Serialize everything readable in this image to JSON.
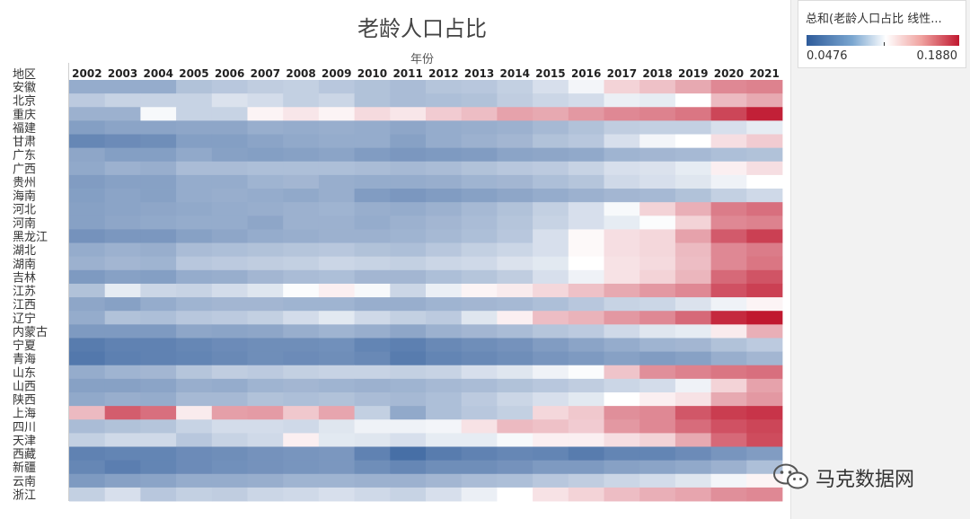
{
  "chart_data": {
    "type": "heatmap",
    "title": "老龄人口占比",
    "xlabel": "年份",
    "ylabel": "地区",
    "years": [
      "2002",
      "2003",
      "2004",
      "2005",
      "2006",
      "2007",
      "2008",
      "2009",
      "2010",
      "2011",
      "2012",
      "2013",
      "2014",
      "2015",
      "2016",
      "2017",
      "2018",
      "2019",
      "2020",
      "2021"
    ],
    "regions": [
      "安徽",
      "北京",
      "重庆",
      "福建",
      "甘肃",
      "广东",
      "广西",
      "贵州",
      "海南",
      "河北",
      "河南",
      "黑龙江",
      "湖北",
      "湖南",
      "吉林",
      "江苏",
      "江西",
      "辽宁",
      "内蒙古",
      "宁夏",
      "青海",
      "山东",
      "山西",
      "陕西",
      "上海",
      "四川",
      "天津",
      "西藏",
      "新疆",
      "云南",
      "浙江"
    ],
    "color_scale": {
      "min": 0.0476,
      "max": 0.188,
      "low_color": "#2e5b9a",
      "mid_color": "#ffffff",
      "high_color": "#c0182f",
      "mid_value": 0.118
    },
    "values": [
      [
        0.09,
        0.09,
        0.09,
        0.098,
        0.1,
        0.102,
        0.103,
        0.1,
        0.098,
        0.096,
        0.099,
        0.1,
        0.103,
        0.108,
        0.115,
        0.128,
        0.133,
        0.14,
        0.15,
        0.152
      ],
      [
        0.101,
        0.104,
        0.104,
        0.104,
        0.109,
        0.107,
        0.103,
        0.105,
        0.098,
        0.096,
        0.097,
        0.098,
        0.102,
        0.105,
        0.107,
        0.113,
        0.112,
        0.118,
        0.135,
        0.14
      ],
      [
        0.092,
        0.092,
        0.116,
        0.104,
        0.104,
        0.12,
        0.123,
        0.12,
        0.126,
        0.123,
        0.13,
        0.134,
        0.142,
        0.14,
        0.145,
        0.15,
        0.152,
        0.156,
        0.172,
        0.185
      ],
      [
        0.085,
        0.087,
        0.087,
        0.088,
        0.088,
        0.091,
        0.09,
        0.091,
        0.09,
        0.088,
        0.09,
        0.091,
        0.092,
        0.095,
        0.098,
        0.102,
        0.103,
        0.103,
        0.108,
        0.112
      ],
      [
        0.075,
        0.077,
        0.078,
        0.085,
        0.085,
        0.087,
        0.089,
        0.09,
        0.09,
        0.086,
        0.09,
        0.092,
        0.094,
        0.098,
        0.1,
        0.108,
        0.115,
        0.118,
        0.125,
        0.13
      ],
      [
        0.088,
        0.085,
        0.085,
        0.089,
        0.086,
        0.085,
        0.086,
        0.087,
        0.084,
        0.082,
        0.083,
        0.084,
        0.087,
        0.088,
        0.089,
        0.093,
        0.094,
        0.095,
        0.097,
        0.098
      ],
      [
        0.089,
        0.092,
        0.091,
        0.096,
        0.096,
        0.097,
        0.097,
        0.097,
        0.096,
        0.095,
        0.096,
        0.098,
        0.1,
        0.101,
        0.104,
        0.108,
        0.109,
        0.112,
        0.121,
        0.125
      ],
      [
        0.084,
        0.086,
        0.086,
        0.09,
        0.09,
        0.093,
        0.094,
        0.091,
        0.09,
        0.09,
        0.091,
        0.093,
        0.094,
        0.097,
        0.099,
        0.106,
        0.108,
        0.11,
        0.114,
        0.118
      ],
      [
        0.085,
        0.087,
        0.086,
        0.09,
        0.091,
        0.09,
        0.089,
        0.091,
        0.084,
        0.082,
        0.084,
        0.086,
        0.088,
        0.09,
        0.092,
        0.094,
        0.095,
        0.098,
        0.103,
        0.106
      ],
      [
        0.086,
        0.087,
        0.088,
        0.089,
        0.09,
        0.091,
        0.092,
        0.093,
        0.091,
        0.09,
        0.092,
        0.095,
        0.098,
        0.103,
        0.108,
        0.116,
        0.128,
        0.138,
        0.154,
        0.158
      ],
      [
        0.086,
        0.088,
        0.089,
        0.09,
        0.09,
        0.088,
        0.092,
        0.092,
        0.09,
        0.092,
        0.094,
        0.096,
        0.099,
        0.104,
        0.108,
        0.112,
        0.117,
        0.128,
        0.15,
        0.152
      ],
      [
        0.08,
        0.082,
        0.082,
        0.086,
        0.088,
        0.09,
        0.091,
        0.092,
        0.092,
        0.093,
        0.095,
        0.097,
        0.1,
        0.108,
        0.119,
        0.125,
        0.127,
        0.142,
        0.165,
        0.174
      ],
      [
        0.09,
        0.092,
        0.091,
        0.096,
        0.097,
        0.098,
        0.099,
        0.1,
        0.098,
        0.097,
        0.1,
        0.103,
        0.105,
        0.108,
        0.119,
        0.125,
        0.127,
        0.135,
        0.15,
        0.154
      ],
      [
        0.092,
        0.094,
        0.093,
        0.1,
        0.101,
        0.102,
        0.103,
        0.105,
        0.104,
        0.103,
        0.105,
        0.106,
        0.109,
        0.111,
        0.118,
        0.124,
        0.126,
        0.134,
        0.15,
        0.156
      ],
      [
        0.083,
        0.086,
        0.085,
        0.09,
        0.091,
        0.094,
        0.096,
        0.097,
        0.094,
        0.094,
        0.097,
        0.099,
        0.102,
        0.108,
        0.114,
        0.124,
        0.128,
        0.136,
        0.16,
        0.167
      ],
      [
        0.098,
        0.112,
        0.105,
        0.104,
        0.107,
        0.11,
        0.117,
        0.121,
        0.116,
        0.105,
        0.113,
        0.12,
        0.122,
        0.127,
        0.133,
        0.14,
        0.145,
        0.15,
        0.168,
        0.174
      ],
      [
        0.088,
        0.086,
        0.09,
        0.093,
        0.094,
        0.094,
        0.093,
        0.093,
        0.091,
        0.091,
        0.093,
        0.094,
        0.095,
        0.097,
        0.1,
        0.104,
        0.105,
        0.109,
        0.114,
        0.12
      ],
      [
        0.09,
        0.098,
        0.097,
        0.1,
        0.101,
        0.103,
        0.107,
        0.111,
        0.106,
        0.103,
        0.101,
        0.11,
        0.121,
        0.134,
        0.137,
        0.145,
        0.15,
        0.16,
        0.182,
        0.188
      ],
      [
        0.083,
        0.083,
        0.083,
        0.088,
        0.087,
        0.088,
        0.091,
        0.093,
        0.091,
        0.088,
        0.092,
        0.094,
        0.096,
        0.099,
        0.101,
        0.106,
        0.11,
        0.112,
        0.122,
        0.138
      ],
      [
        0.07,
        0.073,
        0.073,
        0.075,
        0.077,
        0.078,
        0.078,
        0.079,
        0.074,
        0.072,
        0.076,
        0.078,
        0.08,
        0.084,
        0.087,
        0.09,
        0.093,
        0.094,
        0.098,
        0.101
      ],
      [
        0.068,
        0.072,
        0.073,
        0.074,
        0.076,
        0.078,
        0.077,
        0.078,
        0.076,
        0.07,
        0.074,
        0.076,
        0.078,
        0.081,
        0.083,
        0.086,
        0.084,
        0.086,
        0.091,
        0.094
      ],
      [
        0.09,
        0.093,
        0.094,
        0.099,
        0.102,
        0.101,
        0.103,
        0.104,
        0.104,
        0.103,
        0.104,
        0.108,
        0.11,
        0.114,
        0.117,
        0.132,
        0.148,
        0.152,
        0.156,
        0.158
      ],
      [
        0.086,
        0.086,
        0.087,
        0.091,
        0.09,
        0.093,
        0.094,
        0.093,
        0.092,
        0.093,
        0.095,
        0.096,
        0.098,
        0.1,
        0.102,
        0.105,
        0.107,
        0.114,
        0.128,
        0.142
      ],
      [
        0.089,
        0.091,
        0.09,
        0.095,
        0.095,
        0.098,
        0.097,
        0.098,
        0.096,
        0.095,
        0.097,
        0.101,
        0.105,
        0.108,
        0.111,
        0.118,
        0.121,
        0.124,
        0.14,
        0.145
      ],
      [
        0.135,
        0.164,
        0.158,
        0.122,
        0.143,
        0.144,
        0.131,
        0.141,
        0.103,
        0.089,
        0.097,
        0.1,
        0.103,
        0.127,
        0.131,
        0.148,
        0.15,
        0.166,
        0.175,
        0.178
      ],
      [
        0.096,
        0.098,
        0.099,
        0.104,
        0.107,
        0.107,
        0.106,
        0.11,
        0.114,
        0.114,
        0.115,
        0.124,
        0.135,
        0.133,
        0.13,
        0.145,
        0.15,
        0.159,
        0.168,
        0.172
      ],
      [
        0.103,
        0.106,
        0.106,
        0.1,
        0.104,
        0.106,
        0.121,
        0.111,
        0.11,
        0.108,
        0.112,
        0.112,
        0.116,
        0.121,
        0.121,
        0.125,
        0.128,
        0.14,
        0.16,
        0.17
      ],
      [
        0.073,
        0.074,
        0.074,
        0.077,
        0.078,
        0.08,
        0.081,
        0.082,
        0.073,
        0.063,
        0.07,
        0.073,
        0.075,
        0.074,
        0.07,
        0.074,
        0.074,
        0.077,
        0.081,
        0.084
      ],
      [
        0.075,
        0.071,
        0.074,
        0.077,
        0.079,
        0.08,
        0.081,
        0.082,
        0.078,
        0.075,
        0.078,
        0.078,
        0.08,
        0.083,
        0.083,
        0.086,
        0.087,
        0.089,
        0.092,
        0.097
      ],
      [
        0.083,
        0.086,
        0.087,
        0.09,
        0.09,
        0.091,
        0.093,
        0.093,
        0.092,
        0.092,
        0.094,
        0.096,
        0.097,
        0.1,
        0.102,
        0.105,
        0.107,
        0.11,
        0.115,
        0.12
      ],
      [
        0.103,
        0.108,
        0.1,
        0.103,
        0.102,
        0.105,
        0.106,
        0.108,
        0.106,
        0.104,
        0.108,
        0.113,
        0.118,
        0.124,
        0.128,
        0.134,
        0.138,
        0.141,
        0.148,
        0.15
      ]
    ]
  },
  "legend": {
    "title": "总和(老龄人口占比 线性...",
    "min_label": "0.0476",
    "max_label": "0.1880"
  },
  "watermark": {
    "text": "马克数据网",
    "icon": "wechat-icon"
  }
}
